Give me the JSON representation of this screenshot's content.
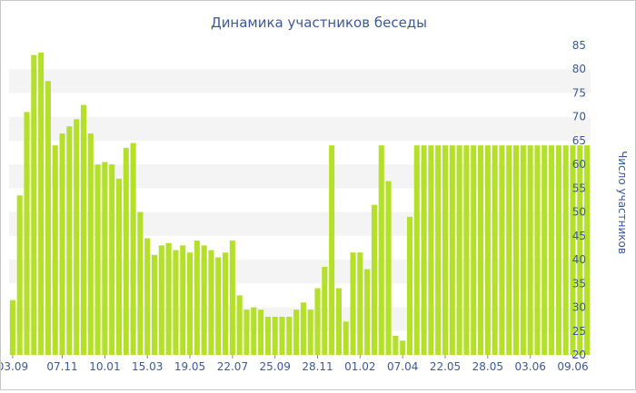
{
  "chart_data": {
    "type": "bar",
    "title": "Динамика участников беседы",
    "xlabel": "",
    "ylabel": "Число участников",
    "ylim": [
      20,
      85
    ],
    "yticks": [
      20,
      25,
      30,
      35,
      40,
      45,
      50,
      55,
      60,
      65,
      70,
      75,
      80,
      85
    ],
    "y_axis_side": "right",
    "grid": "alternating horizontal bands",
    "bar_color": "#b5e02a",
    "band_color": "#f4f4f4",
    "text_color": "#3b5998",
    "xtick_labels": [
      {
        "index": 0,
        "label": "03.09"
      },
      {
        "index": 7,
        "label": "07.11"
      },
      {
        "index": 13,
        "label": "10.01"
      },
      {
        "index": 19,
        "label": "15.03"
      },
      {
        "index": 25,
        "label": "19.05"
      },
      {
        "index": 31,
        "label": "22.07"
      },
      {
        "index": 37,
        "label": "25.09"
      },
      {
        "index": 43,
        "label": "28.11"
      },
      {
        "index": 49,
        "label": "01.02"
      },
      {
        "index": 55,
        "label": "07.04"
      },
      {
        "index": 61,
        "label": "22.05"
      },
      {
        "index": 67,
        "label": "28.05"
      },
      {
        "index": 73,
        "label": "03.06"
      },
      {
        "index": 79,
        "label": "09.06"
      }
    ],
    "values": [
      31.5,
      53.5,
      71,
      83,
      83.5,
      77.5,
      64,
      66.5,
      68,
      69.5,
      72.5,
      66.5,
      60,
      60.5,
      60,
      57,
      63.5,
      64.5,
      50,
      44.5,
      41,
      43,
      43.5,
      42,
      43,
      41.5,
      44,
      43,
      42,
      40.5,
      41.5,
      44,
      32.5,
      29.5,
      30,
      29.5,
      28,
      28,
      28,
      28,
      29.5,
      31,
      29.5,
      34,
      38.5,
      64,
      34,
      27,
      41.5,
      41.5,
      38,
      51.5,
      64,
      56.5,
      24,
      23,
      49,
      64,
      64,
      64,
      64,
      64,
      64,
      64,
      64,
      64,
      64,
      64,
      64,
      64,
      64,
      64,
      64,
      64,
      64,
      64,
      64,
      64,
      64,
      64,
      64,
      64
    ]
  }
}
